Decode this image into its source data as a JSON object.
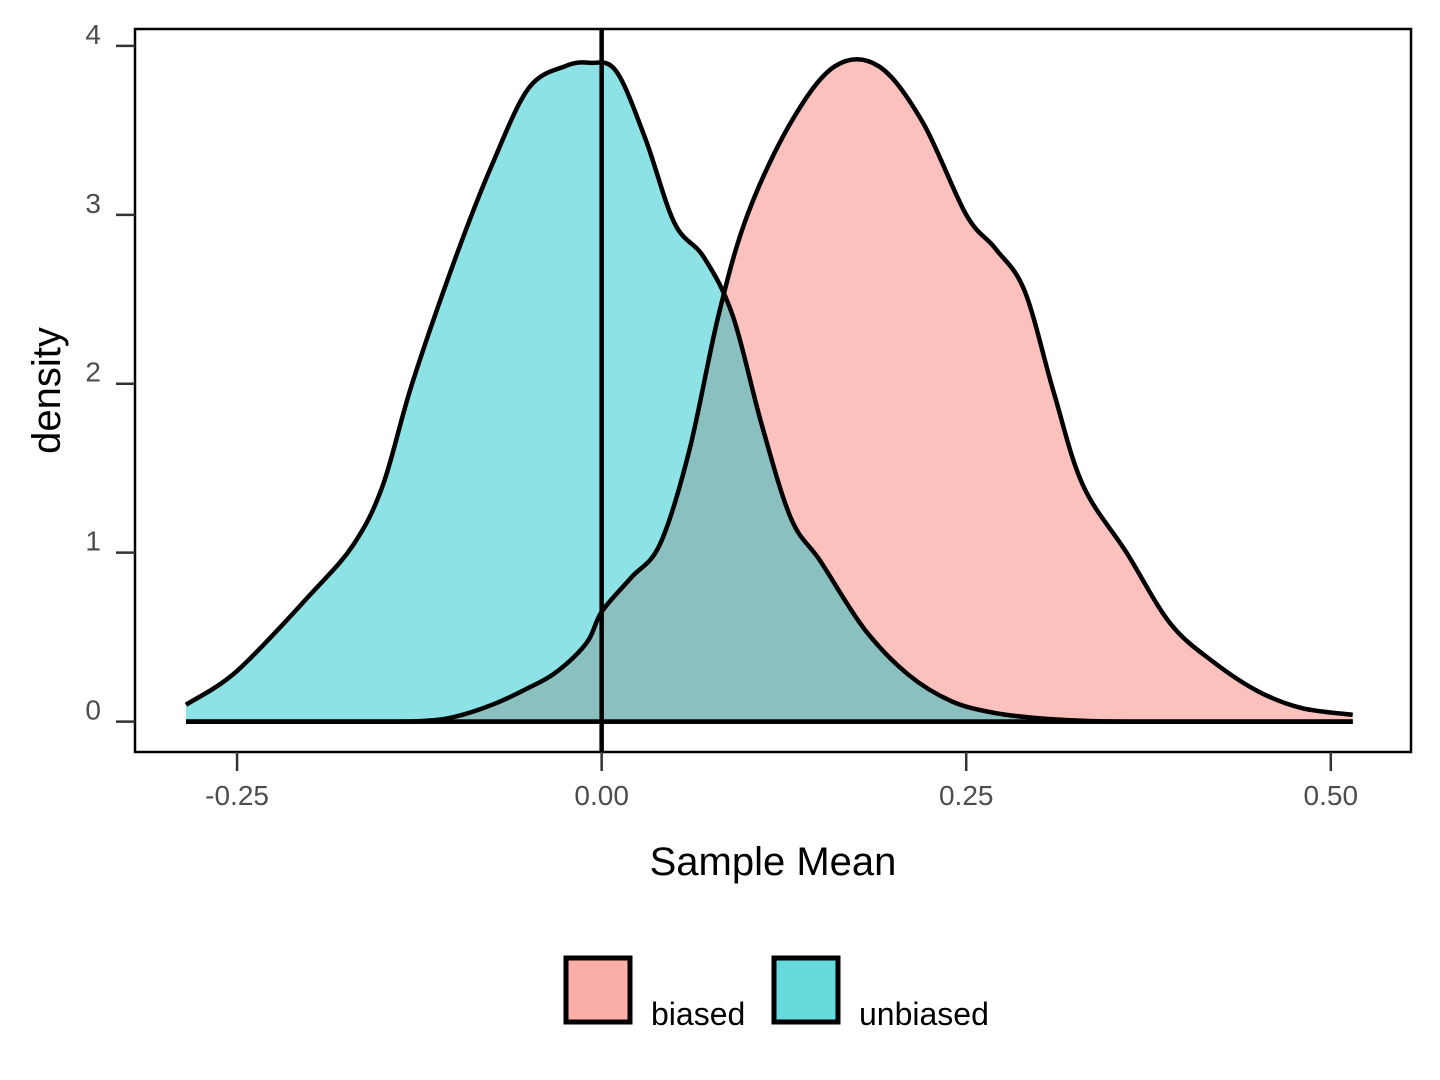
{
  "chart_data": {
    "type": "area",
    "xlabel": "Sample Mean",
    "ylabel": "density",
    "xlim": [
      -0.32,
      0.555
    ],
    "ylim": [
      -0.18,
      4.1
    ],
    "x_ticks": [
      -0.25,
      0.0,
      0.25,
      0.5
    ],
    "x_tick_labels": [
      "-0.25",
      "0.00",
      "0.25",
      "0.50"
    ],
    "y_ticks": [
      0,
      1,
      2,
      3,
      4
    ],
    "y_tick_labels": [
      "0",
      "1",
      "2",
      "3",
      "4"
    ],
    "grid": false,
    "legend_position": "bottom",
    "vline_x": 0.0,
    "series": [
      {
        "name": "biased",
        "color": "#F8766D",
        "x": [
          -0.285,
          -0.2,
          -0.15,
          -0.12,
          -0.1,
          -0.075,
          -0.05,
          -0.03,
          -0.01,
          0.0,
          0.02,
          0.04,
          0.06,
          0.08,
          0.1,
          0.13,
          0.16,
          0.19,
          0.22,
          0.25,
          0.27,
          0.29,
          0.31,
          0.33,
          0.36,
          0.39,
          0.42,
          0.45,
          0.48,
          0.515
        ],
        "y": [
          0.0,
          0.0,
          0.0,
          0.005,
          0.03,
          0.1,
          0.2,
          0.3,
          0.47,
          0.65,
          0.85,
          1.05,
          1.6,
          2.4,
          3.0,
          3.55,
          3.88,
          3.88,
          3.55,
          3.0,
          2.8,
          2.55,
          1.95,
          1.4,
          1.0,
          0.58,
          0.35,
          0.18,
          0.08,
          0.04
        ]
      },
      {
        "name": "unbiased",
        "color": "#00BFC4",
        "x": [
          -0.285,
          -0.25,
          -0.2,
          -0.17,
          -0.15,
          -0.13,
          -0.1,
          -0.075,
          -0.05,
          -0.025,
          -0.008,
          0.01,
          0.03,
          0.05,
          0.07,
          0.09,
          0.11,
          0.13,
          0.15,
          0.18,
          0.21,
          0.24,
          0.27,
          0.3,
          0.33,
          0.36,
          0.4,
          0.45,
          0.515
        ],
        "y": [
          0.1,
          0.3,
          0.75,
          1.05,
          1.4,
          2.0,
          2.75,
          3.3,
          3.75,
          3.88,
          3.9,
          3.85,
          3.45,
          2.95,
          2.75,
          2.4,
          1.75,
          1.2,
          0.95,
          0.55,
          0.28,
          0.12,
          0.05,
          0.02,
          0.005,
          0.0,
          0.0,
          0.0,
          0.0
        ]
      }
    ]
  }
}
